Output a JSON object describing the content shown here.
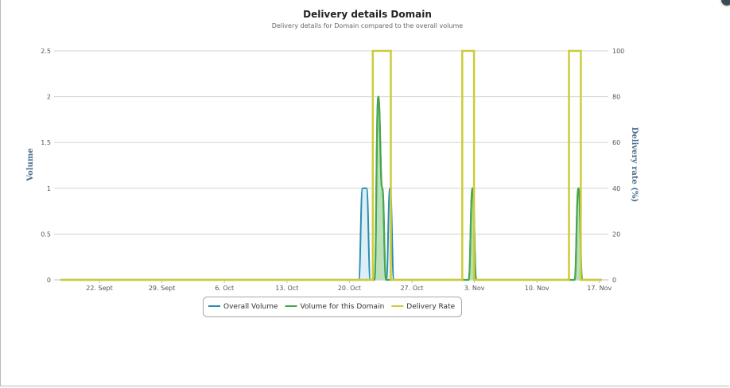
{
  "chart_data": {
    "type": "line",
    "title": "Delivery details Domain",
    "subtitle": "Delivery details for Domain compared to the overall volume",
    "ylabel": "Volume",
    "y2label": "Delivery rate (%)",
    "ylim": [
      0,
      2.5
    ],
    "y2lim": [
      0,
      100
    ],
    "yticks": [
      "0",
      "0.5",
      "1",
      "1.5",
      "2",
      "2.5"
    ],
    "y2ticks": [
      "0",
      "20",
      "40",
      "60",
      "80",
      "100"
    ],
    "xticks": [
      "22. Sept",
      "29. Sept",
      "6. Oct",
      "13. Oct",
      "20. Oct",
      "27. Oct",
      "3. Nov",
      "10. Nov",
      "17. Nov"
    ],
    "grid": true,
    "legend_position": "bottom-center",
    "colors": {
      "overall": "#2b8cb0",
      "overall_fill": "#d7ecf5",
      "domain": "#4aa64a",
      "domain_fill": "#b6deb6",
      "rate": "#cccc3a"
    },
    "series": [
      {
        "name": "Overall Volume",
        "axis": "left",
        "points": [
          [
            0,
            0
          ],
          [
            75,
            0
          ],
          [
            76,
            0
          ],
          [
            77,
            1
          ],
          [
            78,
            1
          ],
          [
            79,
            0
          ],
          [
            80,
            0
          ],
          [
            81,
            2
          ],
          [
            82,
            1
          ],
          [
            83,
            0
          ],
          [
            84,
            1
          ],
          [
            85,
            0
          ],
          [
            104,
            0
          ],
          [
            105,
            1
          ],
          [
            106,
            0
          ],
          [
            131,
            0
          ],
          [
            132,
            1
          ],
          [
            133,
            0
          ],
          [
            138,
            0
          ]
        ]
      },
      {
        "name": "Volume for this Domain",
        "axis": "left",
        "points": [
          [
            0,
            0
          ],
          [
            80,
            0
          ],
          [
            81,
            2
          ],
          [
            82,
            1
          ],
          [
            83,
            0
          ],
          [
            104,
            0
          ],
          [
            105,
            1
          ],
          [
            106,
            0
          ],
          [
            131,
            0
          ],
          [
            132,
            1
          ],
          [
            133,
            0
          ],
          [
            138,
            0
          ]
        ]
      },
      {
        "name": "Delivery Rate",
        "axis": "right",
        "points": [
          [
            0,
            0
          ],
          [
            79.6,
            0
          ],
          [
            79.6,
            100
          ],
          [
            84.2,
            100
          ],
          [
            84.2,
            0
          ],
          [
            102.4,
            0
          ],
          [
            102.4,
            100
          ],
          [
            105.4,
            100
          ],
          [
            105.4,
            0
          ],
          [
            129.6,
            0
          ],
          [
            129.6,
            100
          ],
          [
            132.6,
            100
          ],
          [
            132.6,
            0
          ],
          [
            138,
            0
          ]
        ]
      }
    ]
  },
  "legend": [
    {
      "label": "Overall Volume",
      "color": "#2b8cb0"
    },
    {
      "label": "Volume for this Domain",
      "color": "#4aa64a"
    },
    {
      "label": "Delivery Rate",
      "color": "#cccc3a"
    }
  ]
}
